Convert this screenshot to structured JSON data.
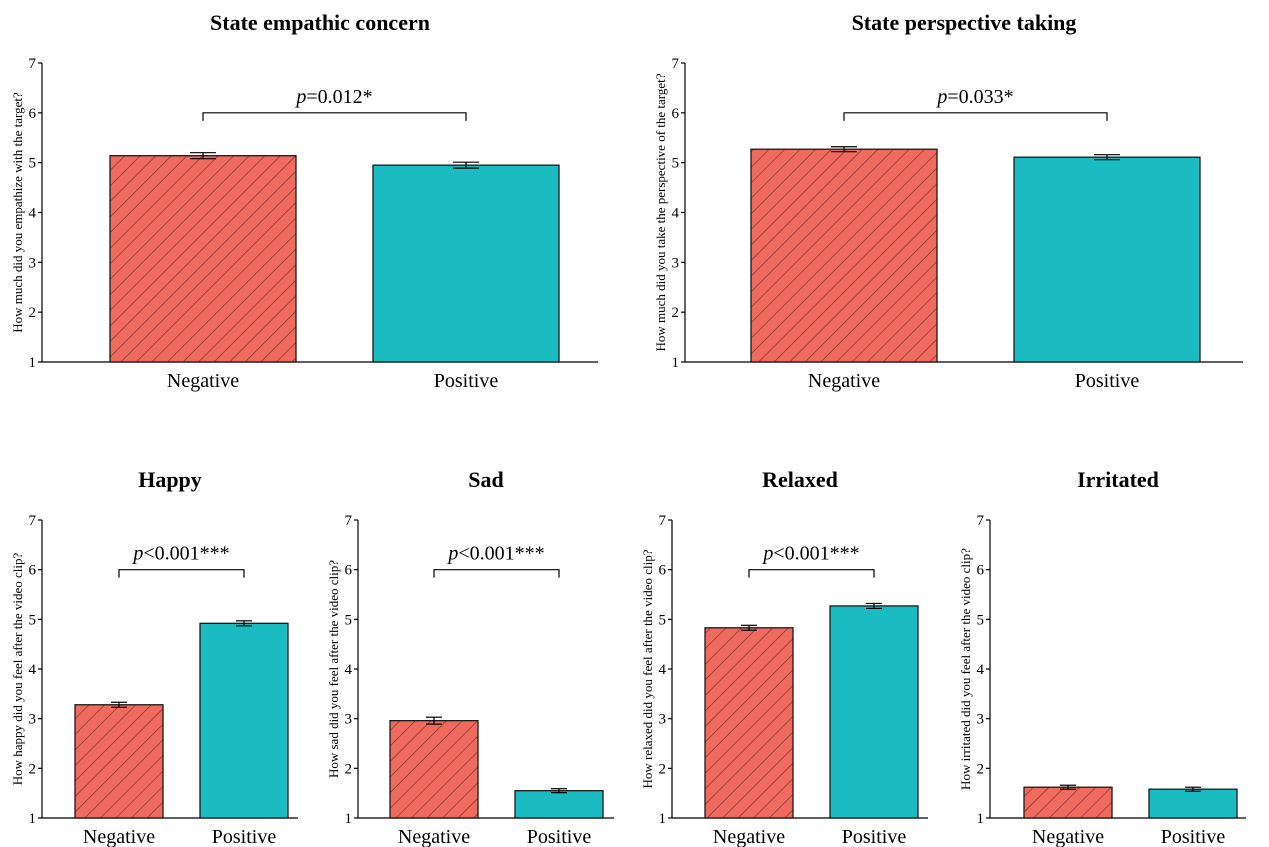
{
  "colors": {
    "negative": "#ef6a5f",
    "positive": "#1bbcc1",
    "axis": "#000000"
  },
  "chart_data": [
    {
      "type": "bar",
      "title": "State empathic concern",
      "ylabel": "How much did you empathize with the target?",
      "categories": [
        "Negative",
        "Positive"
      ],
      "values": [
        5.14,
        4.95
      ],
      "errors": [
        0.06,
        0.06
      ],
      "ylim": [
        1,
        7
      ],
      "yticks": [
        "1",
        "2",
        "3",
        "4",
        "5",
        "6",
        "7"
      ],
      "p_italic": "p",
      "p_text": "=0.012*",
      "bracket_y": 6.0
    },
    {
      "type": "bar",
      "title": "State perspective taking",
      "ylabel": "How much did you take the perspective of the target?",
      "categories": [
        "Negative",
        "Positive"
      ],
      "values": [
        5.27,
        5.11
      ],
      "errors": [
        0.05,
        0.05
      ],
      "ylim": [
        1,
        7
      ],
      "yticks": [
        "1",
        "2",
        "3",
        "4",
        "5",
        "6",
        "7"
      ],
      "p_italic": "p",
      "p_text": "=0.033*",
      "bracket_y": 6.0
    },
    {
      "type": "bar",
      "title": "Happy",
      "ylabel": "How happy did you feel after the video clip?",
      "categories": [
        "Negative",
        "Positive"
      ],
      "values": [
        3.28,
        4.92
      ],
      "errors": [
        0.05,
        0.05
      ],
      "ylim": [
        1,
        7
      ],
      "yticks": [
        "1",
        "2",
        "3",
        "4",
        "5",
        "6",
        "7"
      ],
      "p_italic": "p",
      "p_text": "<0.001***",
      "bracket_y": 6.0
    },
    {
      "type": "bar",
      "title": "Sad",
      "ylabel": "How sad did you feel after the video clip?",
      "categories": [
        "Negative",
        "Positive"
      ],
      "values": [
        2.96,
        1.55
      ],
      "errors": [
        0.07,
        0.04
      ],
      "ylim": [
        1,
        7
      ],
      "yticks": [
        "1",
        "2",
        "3",
        "4",
        "5",
        "6",
        "7"
      ],
      "p_italic": "p",
      "p_text": "<0.001***",
      "bracket_y": 6.0
    },
    {
      "type": "bar",
      "title": "Relaxed",
      "ylabel": "How relaxed did you feel after the video clip?",
      "categories": [
        "Negative",
        "Positive"
      ],
      "values": [
        4.83,
        5.27
      ],
      "errors": [
        0.05,
        0.05
      ],
      "ylim": [
        1,
        7
      ],
      "yticks": [
        "1",
        "2",
        "3",
        "4",
        "5",
        "6",
        "7"
      ],
      "p_italic": "p",
      "p_text": "<0.001***",
      "bracket_y": 6.0
    },
    {
      "type": "bar",
      "title": "Irritated",
      "ylabel": "How irritated did you feel after the video clip?",
      "categories": [
        "Negative",
        "Positive"
      ],
      "values": [
        1.62,
        1.58
      ],
      "errors": [
        0.04,
        0.04
      ],
      "ylim": [
        1,
        7
      ],
      "yticks": [
        "1",
        "2",
        "3",
        "4",
        "5",
        "6",
        "7"
      ],
      "p_italic": "",
      "p_text": "",
      "bracket_y": null
    }
  ]
}
